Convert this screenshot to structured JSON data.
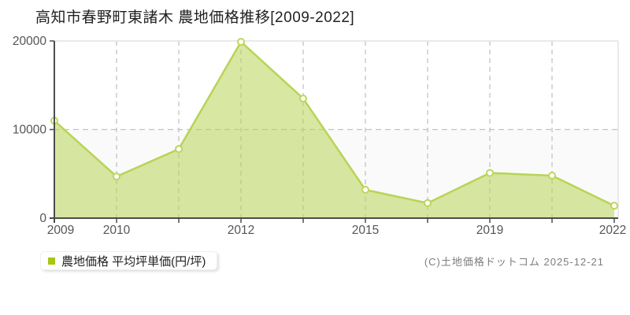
{
  "title": "高知市春野町東諸木 農地価格推移[2009-2022]",
  "legend": {
    "label": "農地価格 平均坪単価(円/坪)",
    "marker_color": "#a6c813"
  },
  "copyright": "(C)土地価格ドットコム 2025-12-21",
  "chart_data": {
    "type": "area",
    "title": "高知市春野町東諸木 農地価格推移[2009-2022]",
    "x": [
      2009,
      2010,
      2011,
      2012,
      2013,
      2015,
      2017,
      2019,
      2021,
      2022
    ],
    "x_labels": [
      "2009",
      "2010",
      "",
      "2012",
      "",
      "2015",
      "",
      "2019",
      "",
      "2022"
    ],
    "series": [
      {
        "name": "農地価格 平均坪単価(円/坪)",
        "values": [
          11000,
          4700,
          7800,
          19900,
          13500,
          3200,
          1700,
          5100,
          4800,
          1400
        ]
      }
    ],
    "ylabel": "",
    "xlabel": "",
    "ylim": [
      0,
      20000
    ],
    "yticks": [
      0,
      10000,
      20000
    ],
    "grid": "dashed",
    "legend_position": "bottom-left",
    "colors": {
      "line": "#b8d456",
      "fill": "#b8d456",
      "fill_opacity": 0.55,
      "marker_fill": "#ffffff",
      "marker_stroke": "#bcd65e",
      "axis": "#4d4d4d",
      "grid": "#c3c3c3",
      "border": "#e4e4e4",
      "band_bg": "#fafafa",
      "tick_text": "#555555"
    }
  }
}
